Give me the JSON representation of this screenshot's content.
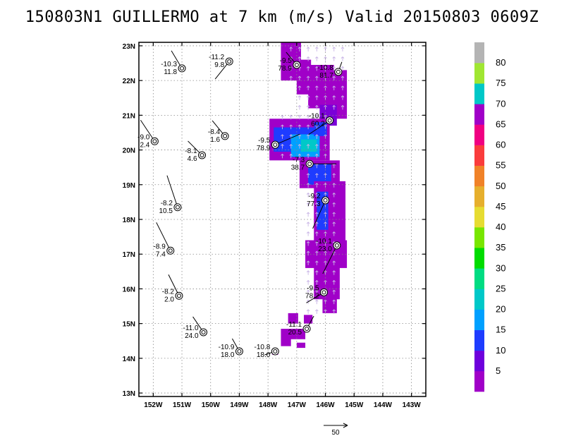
{
  "chart_data": {
    "type": "scatter",
    "title": "150803N1 GUILLERMO at 7 km (m/s) Valid 20150803 0609Z",
    "xlim": [
      -152.5,
      -142.5
    ],
    "ylim": [
      12.9,
      23.1
    ],
    "x_ticks": [
      -152,
      -151,
      -150,
      -149,
      -148,
      -147,
      -146,
      -145,
      -144,
      -143
    ],
    "x_tick_labels": [
      "152W",
      "151W",
      "150W",
      "149W",
      "148W",
      "147W",
      "146W",
      "145W",
      "144W",
      "143W"
    ],
    "y_ticks": [
      13,
      14,
      15,
      16,
      17,
      18,
      19,
      20,
      21,
      22,
      23
    ],
    "y_tick_labels": [
      "13N",
      "14N",
      "15N",
      "16N",
      "17N",
      "18N",
      "19N",
      "20N",
      "21N",
      "22N",
      "23N"
    ],
    "grid": true,
    "colorbar": {
      "levels": [
        "5",
        "10",
        "15",
        "20",
        "25",
        "30",
        "35",
        "40",
        "45",
        "50",
        "55",
        "60",
        "65",
        "70",
        "75",
        "80"
      ],
      "colors": [
        "#a000c8",
        "#6e00dc",
        "#1e3cff",
        "#00a0ff",
        "#00c8c8",
        "#00dc82",
        "#00dc00",
        "#78e600",
        "#e6dc32",
        "#e6af2d",
        "#f08228",
        "#fa3c3c",
        "#f00082",
        "#a000c8",
        "#00c8c8",
        "#a0e632",
        "#b4b4b4"
      ]
    },
    "reference_vector": "50",
    "stations": [
      {
        "x": -151.0,
        "y": 22.35,
        "top": "-10.3",
        "bottom": "11.8"
      },
      {
        "x": -149.35,
        "y": 22.55,
        "top": "-11.2",
        "bottom": "9.8"
      },
      {
        "x": -147.0,
        "y": 22.45,
        "top": "-9.5",
        "bottom": "78.9"
      },
      {
        "x": -145.55,
        "y": 22.25,
        "top": "-10.8",
        "bottom": "81.7"
      },
      {
        "x": -149.5,
        "y": 20.4,
        "top": "-8.4",
        "bottom": "1.6"
      },
      {
        "x": -151.95,
        "y": 20.25,
        "top": "-9.0",
        "bottom": "2.4"
      },
      {
        "x": -150.3,
        "y": 19.85,
        "top": "-8.1",
        "bottom": "4.6"
      },
      {
        "x": -147.75,
        "y": 20.15,
        "top": "-9.5",
        "bottom": "78.9"
      },
      {
        "x": -145.85,
        "y": 20.85,
        "top": "-10.1",
        "bottom": "60.2"
      },
      {
        "x": -146.55,
        "y": 19.6,
        "top": "-7.3",
        "bottom": "38.7"
      },
      {
        "x": -146.0,
        "y": 18.55,
        "top": "-9.2",
        "bottom": "77.3"
      },
      {
        "x": -151.15,
        "y": 18.35,
        "top": "-8.2",
        "bottom": "10.5"
      },
      {
        "x": -145.6,
        "y": 17.25,
        "top": "-10.1",
        "bottom": "23.0"
      },
      {
        "x": -151.4,
        "y": 17.1,
        "top": "-8.9",
        "bottom": "7.4"
      },
      {
        "x": -146.05,
        "y": 15.9,
        "top": "-9.5",
        "bottom": "78.2"
      },
      {
        "x": -151.1,
        "y": 15.8,
        "top": "-8.2",
        "bottom": "2.0"
      },
      {
        "x": -146.65,
        "y": 14.85,
        "top": "-11.1",
        "bottom": "20.5"
      },
      {
        "x": -150.25,
        "y": 14.75,
        "top": "-11.0",
        "bottom": "24.0"
      },
      {
        "x": -149.0,
        "y": 14.2,
        "top": "-10.9",
        "bottom": "18.0"
      },
      {
        "x": -147.75,
        "y": 14.2,
        "top": "-10.8",
        "bottom": "18.0"
      }
    ]
  }
}
